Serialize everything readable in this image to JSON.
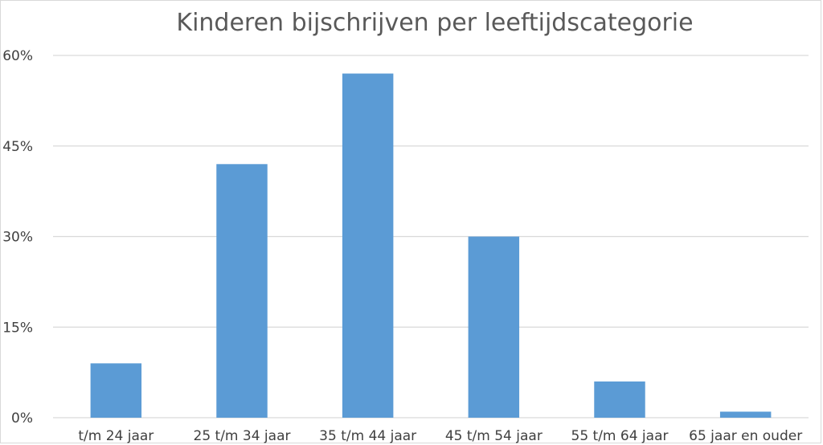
{
  "chart_data": {
    "type": "bar",
    "title": "Kinderen bijschrijven per leeftijdscategorie",
    "categories": [
      "t/m 24 jaar",
      "25 t/m 34 jaar",
      "35 t/m 44 jaar",
      "45 t/m 54 jaar",
      "55 t/m 64 jaar",
      "65 jaar en ouder"
    ],
    "values": [
      9,
      42,
      57,
      30,
      6,
      1
    ],
    "value_unit": "%",
    "ylim": [
      0,
      60
    ],
    "yticks": [
      0,
      15,
      30,
      45,
      60
    ],
    "ytick_labels": [
      "0%",
      "15%",
      "30%",
      "45%",
      "60%"
    ],
    "grid": true,
    "legend": "none",
    "bar_color": "#5b9bd5"
  }
}
